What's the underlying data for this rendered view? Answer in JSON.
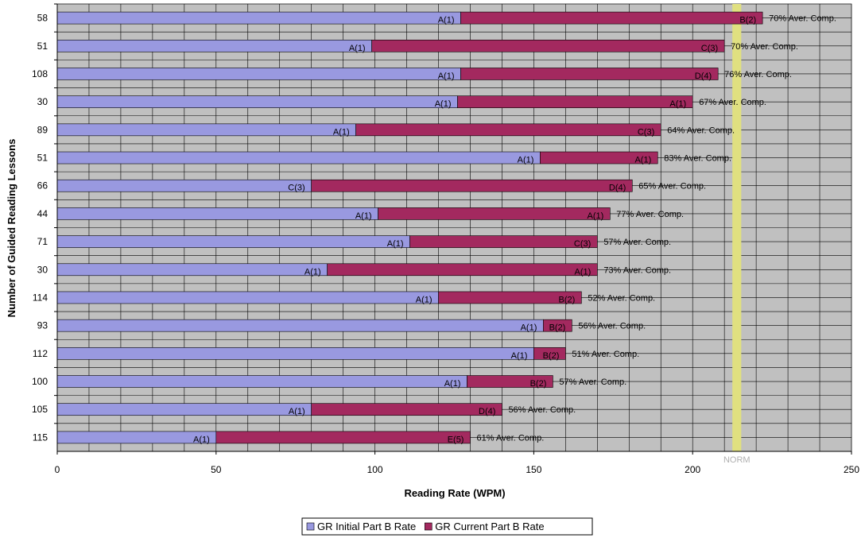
{
  "chart_data": {
    "type": "stacked-barh",
    "xlabel": "Reading Rate (WPM)",
    "ylabel": "Number of Guided Reading Lessons",
    "categories": [
      "58",
      "51",
      "108",
      "30",
      "89",
      "51",
      "66",
      "44",
      "71",
      "30",
      "114",
      "93",
      "112",
      "100",
      "105",
      "115"
    ],
    "series": [
      {
        "name": "GR Initial Part B Rate",
        "color": "#9999e0",
        "values": [
          127,
          99,
          127,
          126,
          94,
          152,
          80,
          101,
          111,
          85,
          120,
          153,
          150,
          129,
          80,
          50
        ],
        "value_labels": [
          "A(1)",
          "A(1)",
          "A(1)",
          "A(1)",
          "A(1)",
          "A(1)",
          "C(3)",
          "A(1)",
          "A(1)",
          "A(1)",
          "A(1)",
          "A(1)",
          "A(1)",
          "A(1)",
          "A(1)",
          "A(1)"
        ]
      },
      {
        "name": "GR Current Part B Rate",
        "color": "#a3295f",
        "values": [
          95,
          111,
          81,
          74,
          96,
          37,
          101,
          73,
          59,
          85,
          45,
          9,
          10,
          27,
          60,
          80
        ],
        "value_labels": [
          "B(2)",
          "C(3)",
          "D(4)",
          "A(1)",
          "C(3)",
          "A(1)",
          "D(4)",
          "A(1)",
          "C(3)",
          "A(1)",
          "B(2)",
          "B(2)",
          "B(2)",
          "B(2)",
          "D(4)",
          "E(5)"
        ]
      }
    ],
    "annotations": [
      "70% Aver. Comp.",
      "70% Aver. Comp.",
      "76% Aver. Comp.",
      "67% Aver. Comp.",
      "64% Aver. Comp.",
      "83% Aver. Comp.",
      "65% Aver. Comp.",
      "77% Aver. Comp.",
      "57% Aver. Comp.",
      "73% Aver. Comp.",
      "52% Aver. Comp.",
      "56% Aver. Comp.",
      "51% Aver. Comp.",
      "57% Aver. Comp.",
      "56% Aver. Comp.",
      "61% Aver. Comp."
    ],
    "norm": {
      "label": "NORM",
      "range": [
        212.5,
        215.3
      ],
      "color": "#e0e080"
    },
    "xlim": [
      0,
      250
    ],
    "xticks": [
      0,
      50,
      100,
      150,
      200,
      250
    ],
    "grid_step": 10,
    "background": "#c0c0c0",
    "legend": "bottom"
  }
}
